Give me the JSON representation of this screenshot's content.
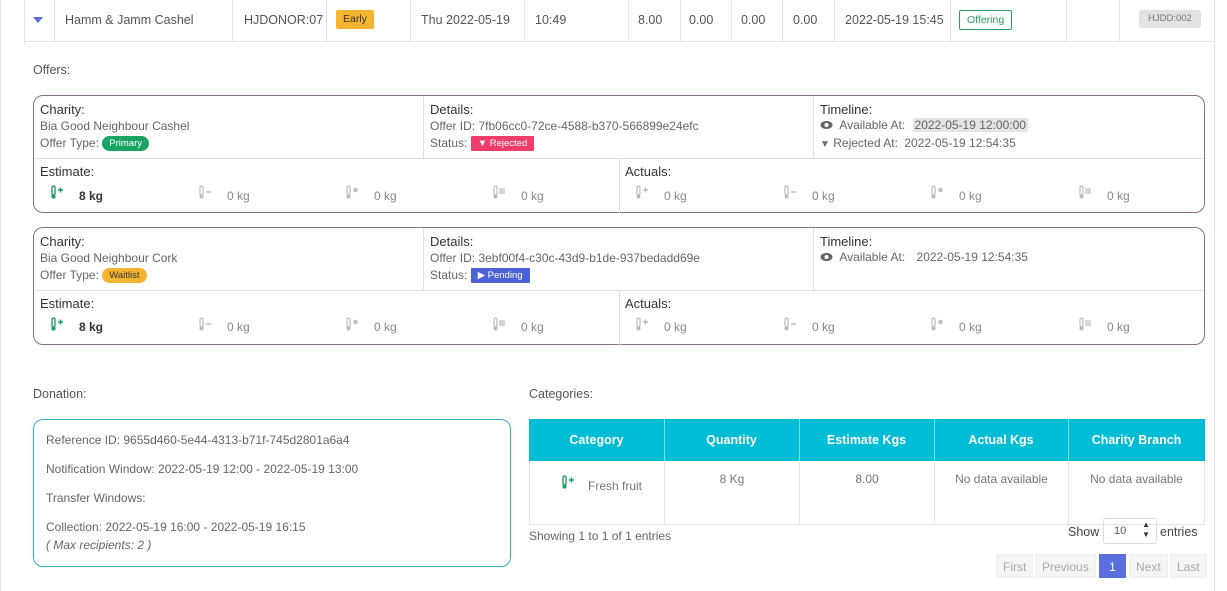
{
  "row": {
    "donor_name": "Hamm & Jamm Cashel",
    "donor_code": "HJDONOR:07",
    "timing_badge": "Early",
    "date": "Thu 2022-05-19",
    "time": "10:49",
    "v1": "8.00",
    "v2": "0.00",
    "v3": "0.00",
    "v4": "0.00",
    "datetime": "2022-05-19 15:45",
    "status": "Offering",
    "ref": "HJDD:002"
  },
  "offers_label": "Offers:",
  "offers": [
    {
      "charity_heading": "Charity:",
      "charity_name": "Bia Good Neighbour Cashel",
      "offer_type_label": "Offer Type:",
      "offer_type": "Primary",
      "details_heading": "Details:",
      "offer_id": "Offer ID: 7fb06cc0-72ce-4588-b370-566899e24efc",
      "status_label": "Status:",
      "status": "Rejected",
      "timeline_heading": "Timeline:",
      "available_label": "Available At:",
      "available_at": "2022-05-19 12:00:00",
      "rejected_label": "Rejected At:",
      "rejected_at": "2022-05-19 12:54:35",
      "estimate_heading": "Estimate:",
      "estimate": [
        "8 kg",
        "0 kg",
        "0 kg",
        "0 kg"
      ],
      "actuals_heading": "Actuals:",
      "actuals": [
        "0 kg",
        "0 kg",
        "0 kg",
        "0 kg"
      ]
    },
    {
      "charity_heading": "Charity:",
      "charity_name": "Bia Good Neighbour Cork",
      "offer_type_label": "Offer Type:",
      "offer_type": "Waitlist",
      "details_heading": "Details:",
      "offer_id": "Offer ID: 3ebf00f4-c30c-43d9-b1de-937bedadd69e",
      "status_label": "Status:",
      "status": "Pending",
      "timeline_heading": "Timeline:",
      "available_label": "Available At:",
      "available_at": "2022-05-19 12:54:35",
      "estimate_heading": "Estimate:",
      "estimate": [
        "8 kg",
        "0 kg",
        "0 kg",
        "0 kg"
      ],
      "actuals_heading": "Actuals:",
      "actuals": [
        "0 kg",
        "0 kg",
        "0 kg",
        "0 kg"
      ]
    }
  ],
  "donation": {
    "label": "Donation:",
    "reference": "Reference ID: 9655d460-5e44-4313-b71f-745d2801a6a4",
    "notification": "Notification Window: 2022-05-19 12:00 - 2022-05-19 13:00",
    "transfer": "Transfer Windows:",
    "collection": "Collection: 2022-05-19 16:00 - 2022-05-19 16:15",
    "max_recipients": "( Max recipients: 2 )"
  },
  "categories": {
    "label": "Categories:",
    "headers": [
      "Category",
      "Quantity",
      "Estimate Kgs",
      "Actual Kgs",
      "Charity Branch"
    ],
    "row": [
      "Fresh fruit",
      "8 Kg",
      "8.00",
      "No data available",
      "No data available"
    ],
    "showing": "Showing 1 to 1 of 1 entries",
    "show_label": "Show",
    "page_size": "10",
    "entries_label": "entries",
    "pager": [
      "First",
      "Previous",
      "1",
      "Next",
      "Last"
    ]
  },
  "colors": {
    "accent": "#5a6ee0",
    "teal": "#00bdd6",
    "rejected": "#ec3d6b",
    "primary": "#19a463",
    "waitlist": "#f5b430"
  }
}
